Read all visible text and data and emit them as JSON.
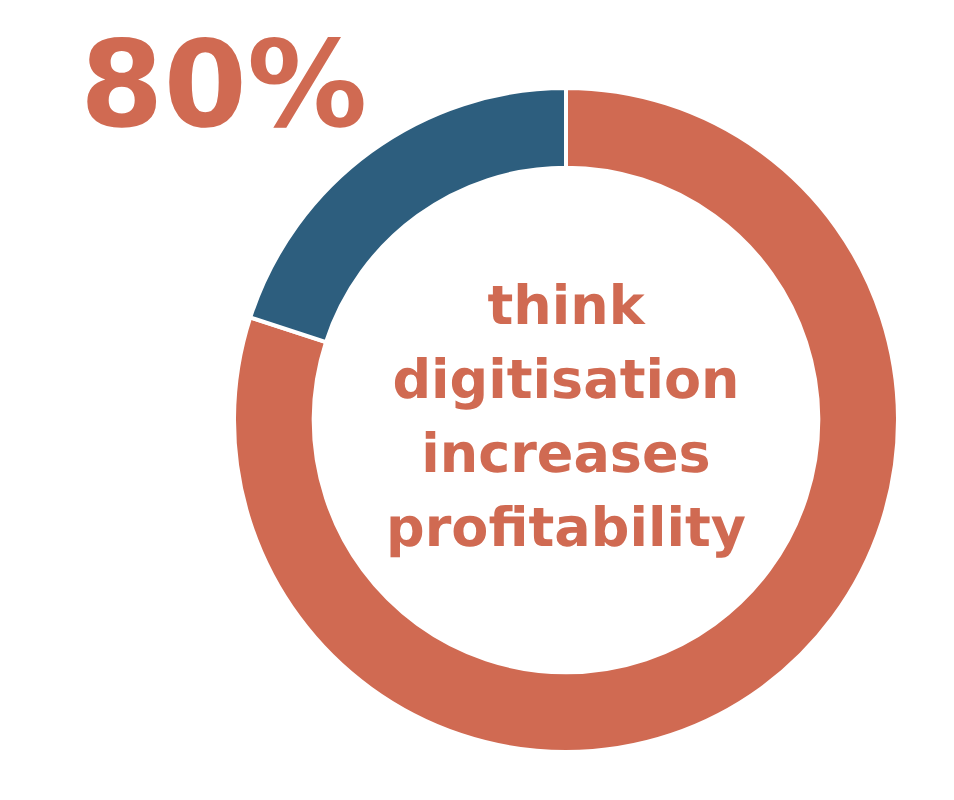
{
  "chart_data": {
    "type": "donut",
    "title": "80%",
    "categories": [
      null,
      null
    ],
    "values": [
      80,
      20
    ],
    "colors": [
      "#d06a52",
      "#2d5e7e"
    ],
    "annotations": [
      "think digitisation increases profitability"
    ],
    "legend": false
  }
}
